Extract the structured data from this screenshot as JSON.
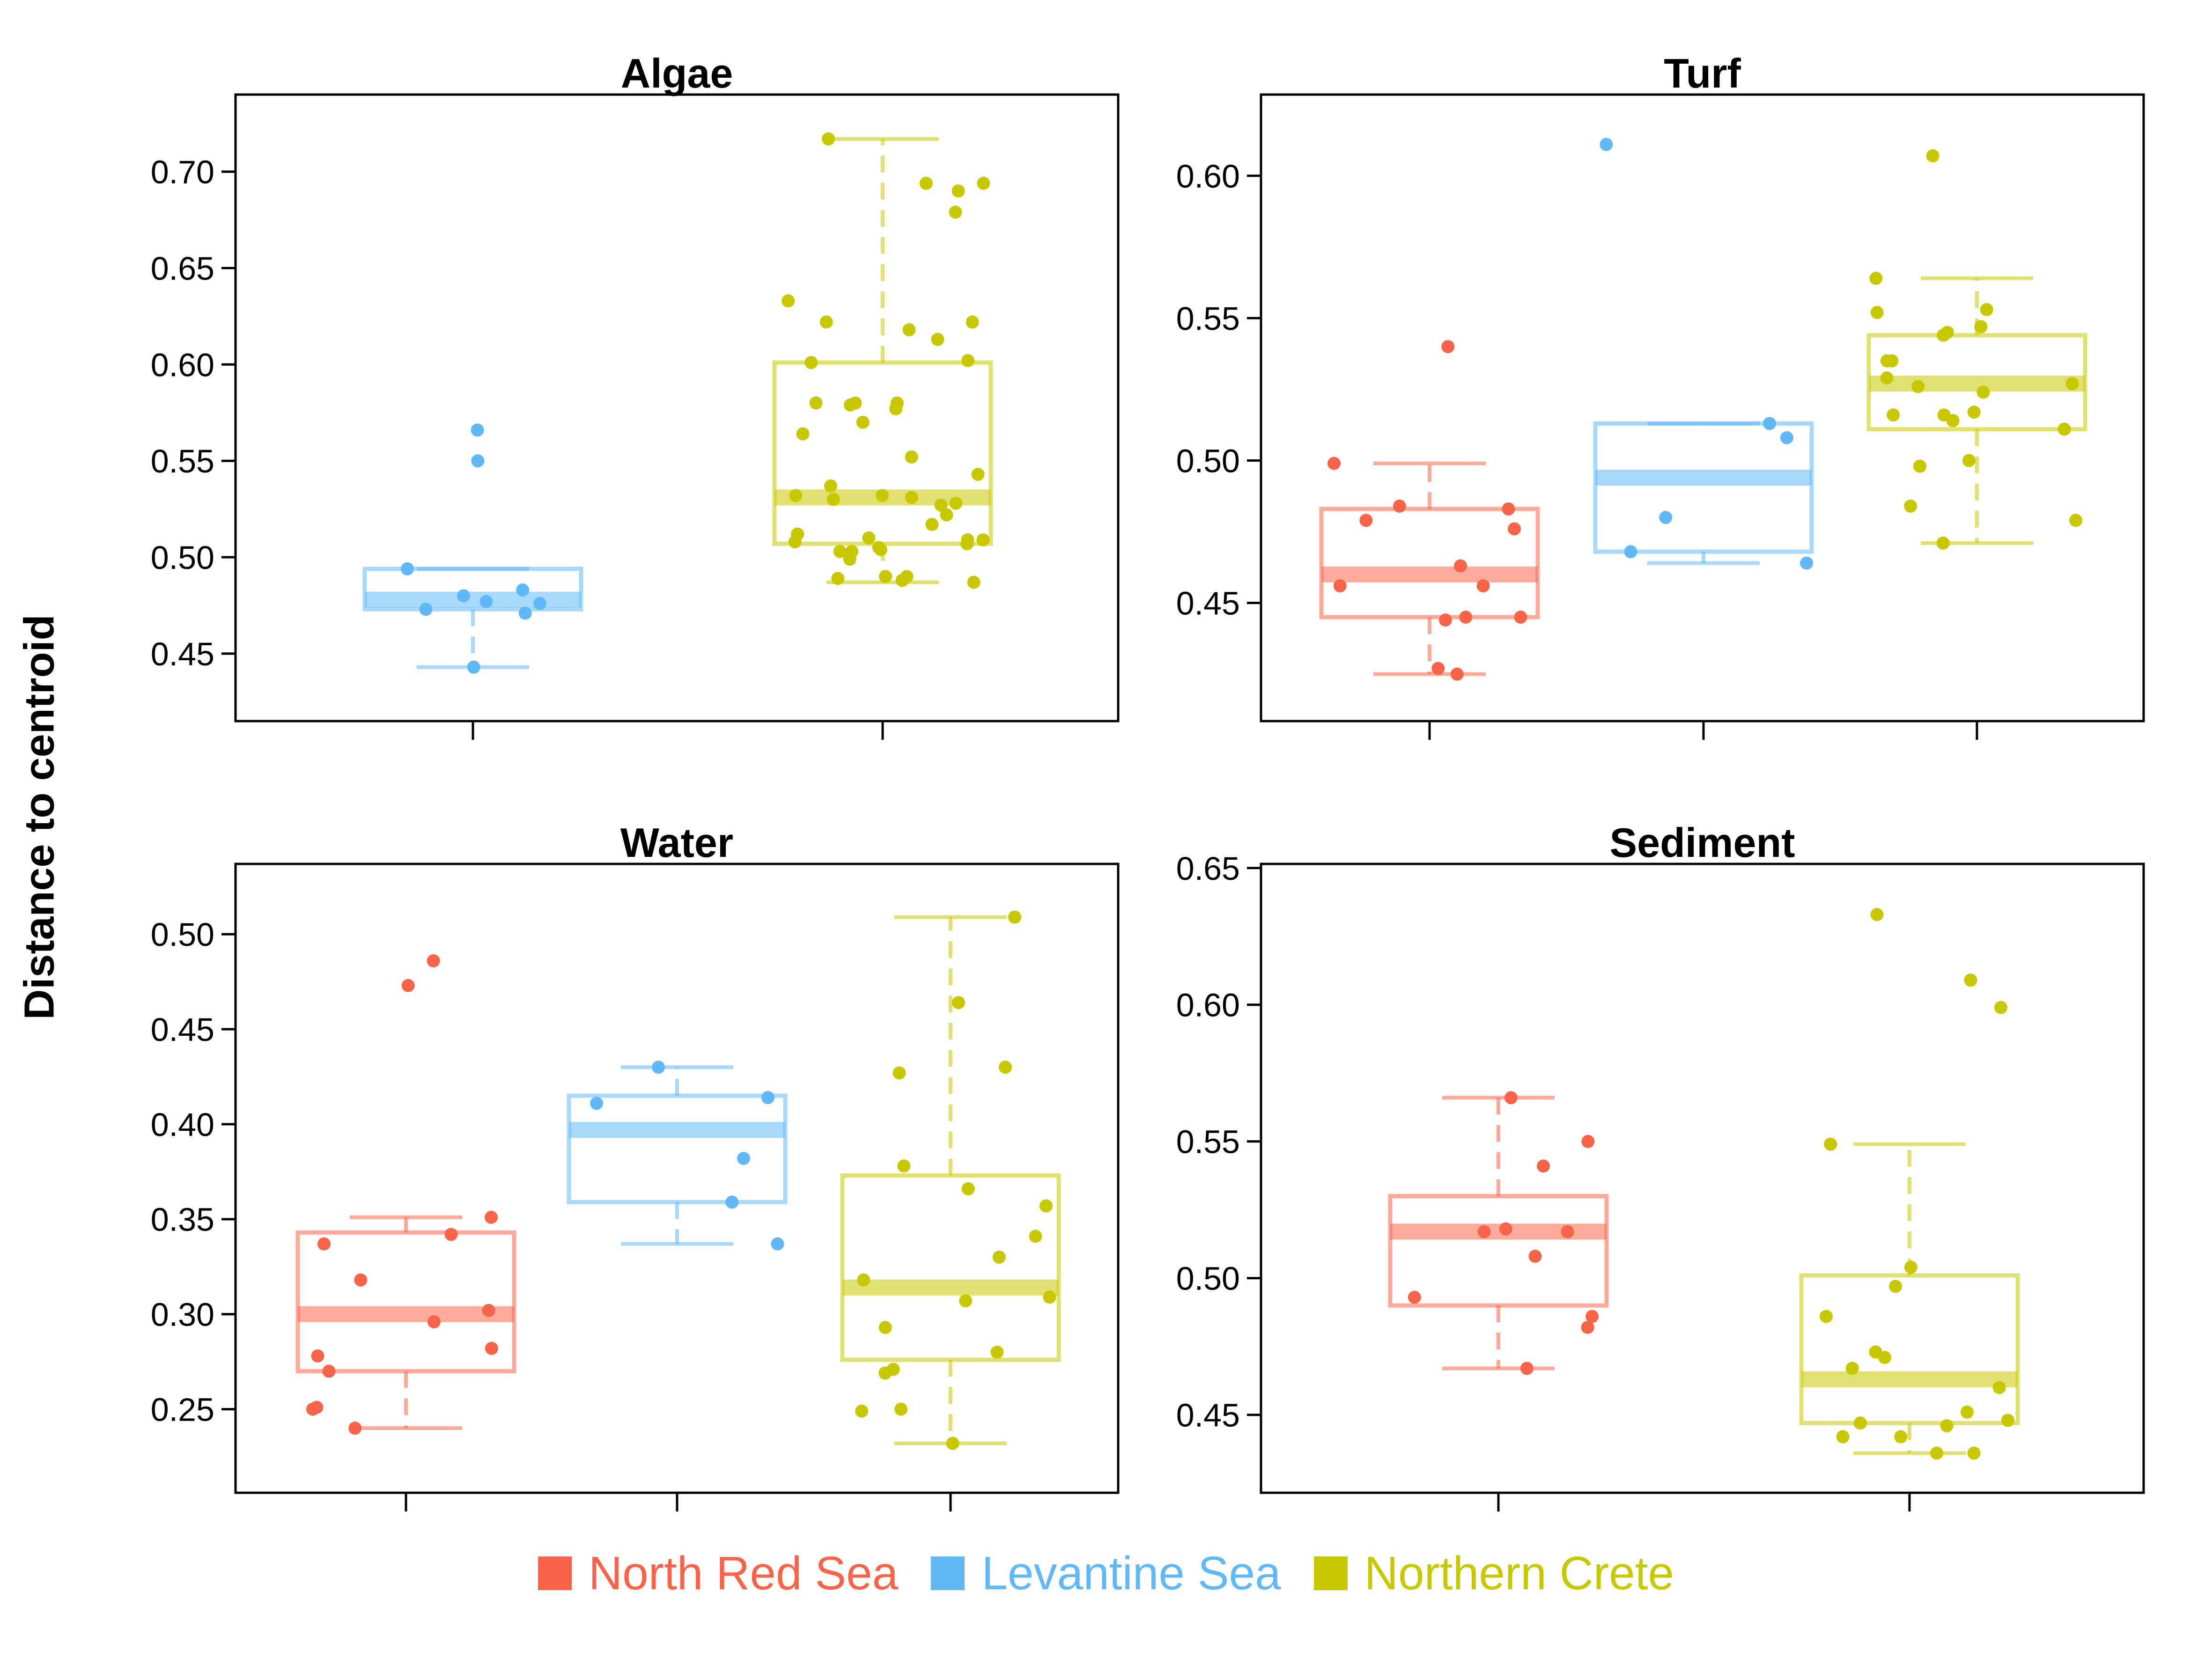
{
  "ylabel": "Distance to centroid",
  "colors": {
    "North Red Sea": "#f8644a",
    "Levantine Sea": "#61b8f6",
    "Northern Crete": "#c8c800"
  },
  "legend": [
    {
      "label": "North Red Sea",
      "color": "#f8644a"
    },
    {
      "label": "Levantine Sea",
      "color": "#61b8f6"
    },
    {
      "label": "Northern Crete",
      "color": "#c8c800"
    }
  ],
  "chart_data": [
    {
      "type": "box",
      "title": "Algae",
      "ylim": [
        0.415,
        0.74
      ],
      "yticks": [
        "0.45",
        "0.50",
        "0.55",
        "0.60",
        "0.65",
        "0.70"
      ],
      "categories": [
        "Levantine Sea",
        "Northern Crete"
      ],
      "boxes": [
        {
          "group": "Levantine Sea",
          "whisker_low": 0.443,
          "q1": 0.473,
          "median": 0.478,
          "q3": 0.494,
          "whisker_high": 0.494,
          "points": [
            0.494,
            0.483,
            0.477,
            0.48,
            0.473,
            0.476,
            0.471,
            0.443,
            0.55,
            0.566
          ]
        },
        {
          "group": "Northern Crete",
          "whisker_low": 0.487,
          "q1": 0.507,
          "median": 0.531,
          "q3": 0.601,
          "whisker_high": 0.717,
          "points": [
            0.717,
            0.694,
            0.694,
            0.69,
            0.679,
            0.633,
            0.618,
            0.622,
            0.622,
            0.613,
            0.601,
            0.602,
            0.58,
            0.579,
            0.577,
            0.58,
            0.57,
            0.58,
            0.564,
            0.552,
            0.543,
            0.537,
            0.53,
            0.527,
            0.528,
            0.531,
            0.532,
            0.532,
            0.522,
            0.517,
            0.512,
            0.51,
            0.509,
            0.507,
            0.505,
            0.503,
            0.504,
            0.508,
            0.509,
            0.503,
            0.499,
            0.49,
            0.488,
            0.49,
            0.489,
            0.487
          ]
        }
      ]
    },
    {
      "type": "box",
      "title": "Turf",
      "ylim": [
        0.4085,
        0.6285
      ],
      "yticks": [
        "0.45",
        "0.50",
        "0.55",
        "0.60"
      ],
      "categories": [
        "North Red Sea",
        "Levantine Sea",
        "Northern Crete"
      ],
      "boxes": [
        {
          "group": "North Red Sea",
          "whisker_low": 0.425,
          "q1": 0.445,
          "median": 0.46,
          "q3": 0.483,
          "whisker_high": 0.499,
          "points": [
            0.54,
            0.499,
            0.484,
            0.483,
            0.479,
            0.476,
            0.463,
            0.456,
            0.456,
            0.445,
            0.445,
            0.444,
            0.427,
            0.425
          ]
        },
        {
          "group": "Levantine Sea",
          "whisker_low": 0.464,
          "q1": 0.468,
          "median": 0.494,
          "q3": 0.513,
          "whisker_high": 0.513,
          "points": [
            0.611,
            0.513,
            0.508,
            0.48,
            0.468,
            0.464
          ]
        },
        {
          "group": "Northern Crete",
          "whisker_low": 0.471,
          "q1": 0.511,
          "median": 0.527,
          "q3": 0.544,
          "whisker_high": 0.564,
          "points": [
            0.607,
            0.564,
            0.552,
            0.553,
            0.547,
            0.545,
            0.544,
            0.535,
            0.535,
            0.527,
            0.529,
            0.526,
            0.524,
            0.517,
            0.516,
            0.516,
            0.514,
            0.511,
            0.5,
            0.498,
            0.484,
            0.479,
            0.471
          ]
        }
      ]
    },
    {
      "type": "box",
      "title": "Water",
      "ylim": [
        0.206,
        0.537
      ],
      "yticks": [
        "0.25",
        "0.30",
        "0.35",
        "0.40",
        "0.45",
        "0.50"
      ],
      "categories": [
        "North Red Sea",
        "Levantine Sea",
        "Northern Crete"
      ],
      "boxes": [
        {
          "group": "North Red Sea",
          "whisker_low": 0.24,
          "q1": 0.27,
          "median": 0.3,
          "q3": 0.343,
          "whisker_high": 0.351,
          "points": [
            0.486,
            0.473,
            0.351,
            0.342,
            0.337,
            0.318,
            0.302,
            0.296,
            0.282,
            0.278,
            0.27,
            0.251,
            0.25,
            0.24
          ]
        },
        {
          "group": "Levantine Sea",
          "whisker_low": 0.337,
          "q1": 0.359,
          "median": 0.397,
          "q3": 0.415,
          "whisker_high": 0.43,
          "points": [
            0.43,
            0.414,
            0.411,
            0.382,
            0.359,
            0.337
          ]
        },
        {
          "group": "Northern Crete",
          "whisker_low": 0.232,
          "q1": 0.276,
          "median": 0.314,
          "q3": 0.373,
          "whisker_high": 0.509,
          "points": [
            0.509,
            0.464,
            0.43,
            0.427,
            0.378,
            0.366,
            0.357,
            0.341,
            0.33,
            0.318,
            0.309,
            0.307,
            0.293,
            0.28,
            0.271,
            0.269,
            0.25,
            0.249,
            0.232
          ]
        }
      ]
    },
    {
      "type": "box",
      "title": "Sediment",
      "ylim": [
        0.4215,
        0.6515
      ],
      "yticks": [
        "0.45",
        "0.50",
        "0.55",
        "0.60",
        "0.65"
      ],
      "categories": [
        "North Red Sea",
        "Northern Crete"
      ],
      "boxes": [
        {
          "group": "North Red Sea",
          "whisker_low": 0.467,
          "q1": 0.49,
          "median": 0.517,
          "q3": 0.53,
          "whisker_high": 0.566,
          "points": [
            0.566,
            0.55,
            0.541,
            0.518,
            0.517,
            0.517,
            0.508,
            0.493,
            0.486,
            0.482,
            0.467
          ]
        },
        {
          "group": "Northern Crete",
          "whisker_low": 0.436,
          "q1": 0.447,
          "median": 0.463,
          "q3": 0.501,
          "whisker_high": 0.549,
          "points": [
            0.633,
            0.609,
            0.599,
            0.549,
            0.504,
            0.497,
            0.486,
            0.473,
            0.471,
            0.467,
            0.46,
            0.451,
            0.448,
            0.447,
            0.446,
            0.442,
            0.442,
            0.436,
            0.436
          ]
        }
      ]
    }
  ]
}
